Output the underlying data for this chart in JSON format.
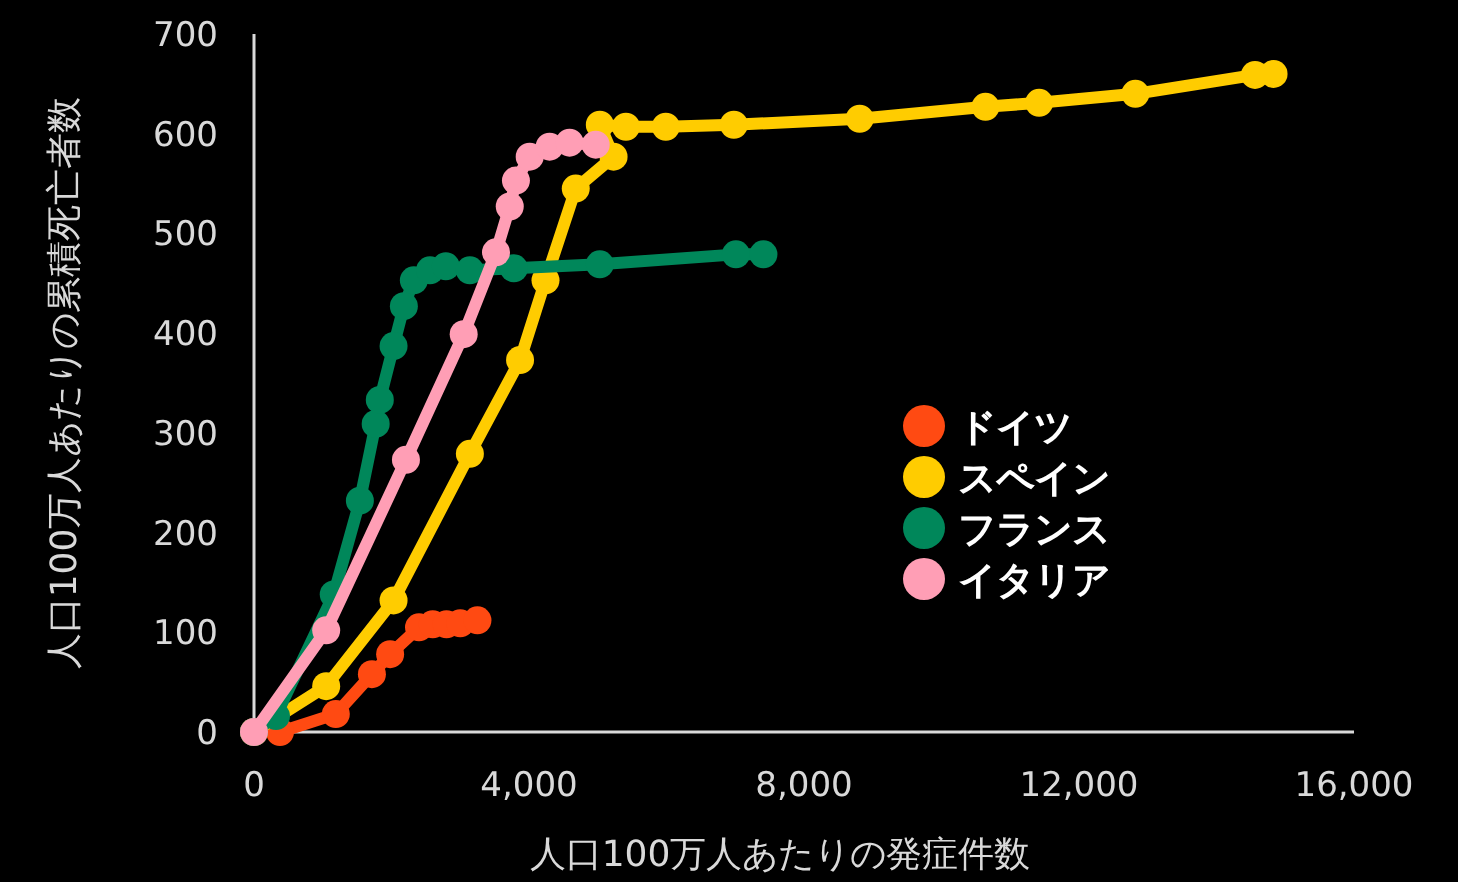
{
  "chart_data": {
    "type": "line",
    "xlabel": "人口100万人あたりの発症件数",
    "ylabel": "人口100万人あたりの累積死亡者数",
    "xlim": [
      0,
      16000
    ],
    "ylim": [
      0,
      700
    ],
    "xticks": [
      0,
      {
        "value": 4000,
        "label": "4,000"
      },
      {
        "value": 8000,
        "label": "8,000"
      },
      {
        "value": 12000,
        "label": "12,000"
      },
      {
        "value": 16000,
        "label": "16,000"
      }
    ],
    "yticks": [
      0,
      100,
      200,
      300,
      400,
      500,
      600,
      700
    ],
    "grid": false,
    "legend": "center",
    "marker": "circle",
    "line_style": "solid",
    "series": [
      {
        "name": "ドイツ",
        "color": "#ff4a12",
        "x": [
          378,
          1190,
          1715,
          1980,
          2400,
          2600,
          2800,
          3000,
          3250
        ],
        "values": [
          0,
          18,
          58,
          78,
          105,
          108,
          108,
          109,
          112
        ]
      },
      {
        "name": "スペイン",
        "color": "#ffcc00",
        "x": [
          0,
          1050,
          2030,
          3140,
          3870,
          4240,
          4680,
          5230,
          5030,
          5410,
          5990,
          6980,
          8810,
          10640,
          11420,
          12820,
          14560,
          14830
        ],
        "values": [
          0,
          46,
          132,
          279,
          373,
          453,
          545,
          577,
          609,
          607,
          607,
          609,
          615,
          627,
          631,
          640,
          659,
          660
        ]
      },
      {
        "name": "フランス",
        "color": "#00875a",
        "x": [
          0,
          320,
          1160,
          1540,
          1770,
          1830,
          2030,
          2180,
          2325,
          2560,
          2790,
          3140,
          3780,
          5030,
          7010,
          7410
        ],
        "values": [
          0,
          16,
          138,
          232,
          309,
          333,
          387,
          427,
          453,
          463,
          467,
          463,
          465,
          469,
          479,
          479
        ]
      },
      {
        "name": "イタリア",
        "color": "#ff9eb5",
        "x": [
          0,
          1050,
          2210,
          3050,
          3520,
          3720,
          3810,
          4010,
          4300,
          4590,
          4970
        ],
        "values": [
          0,
          102,
          273,
          399,
          481,
          527,
          553,
          577,
          587,
          591,
          589
        ]
      }
    ]
  }
}
